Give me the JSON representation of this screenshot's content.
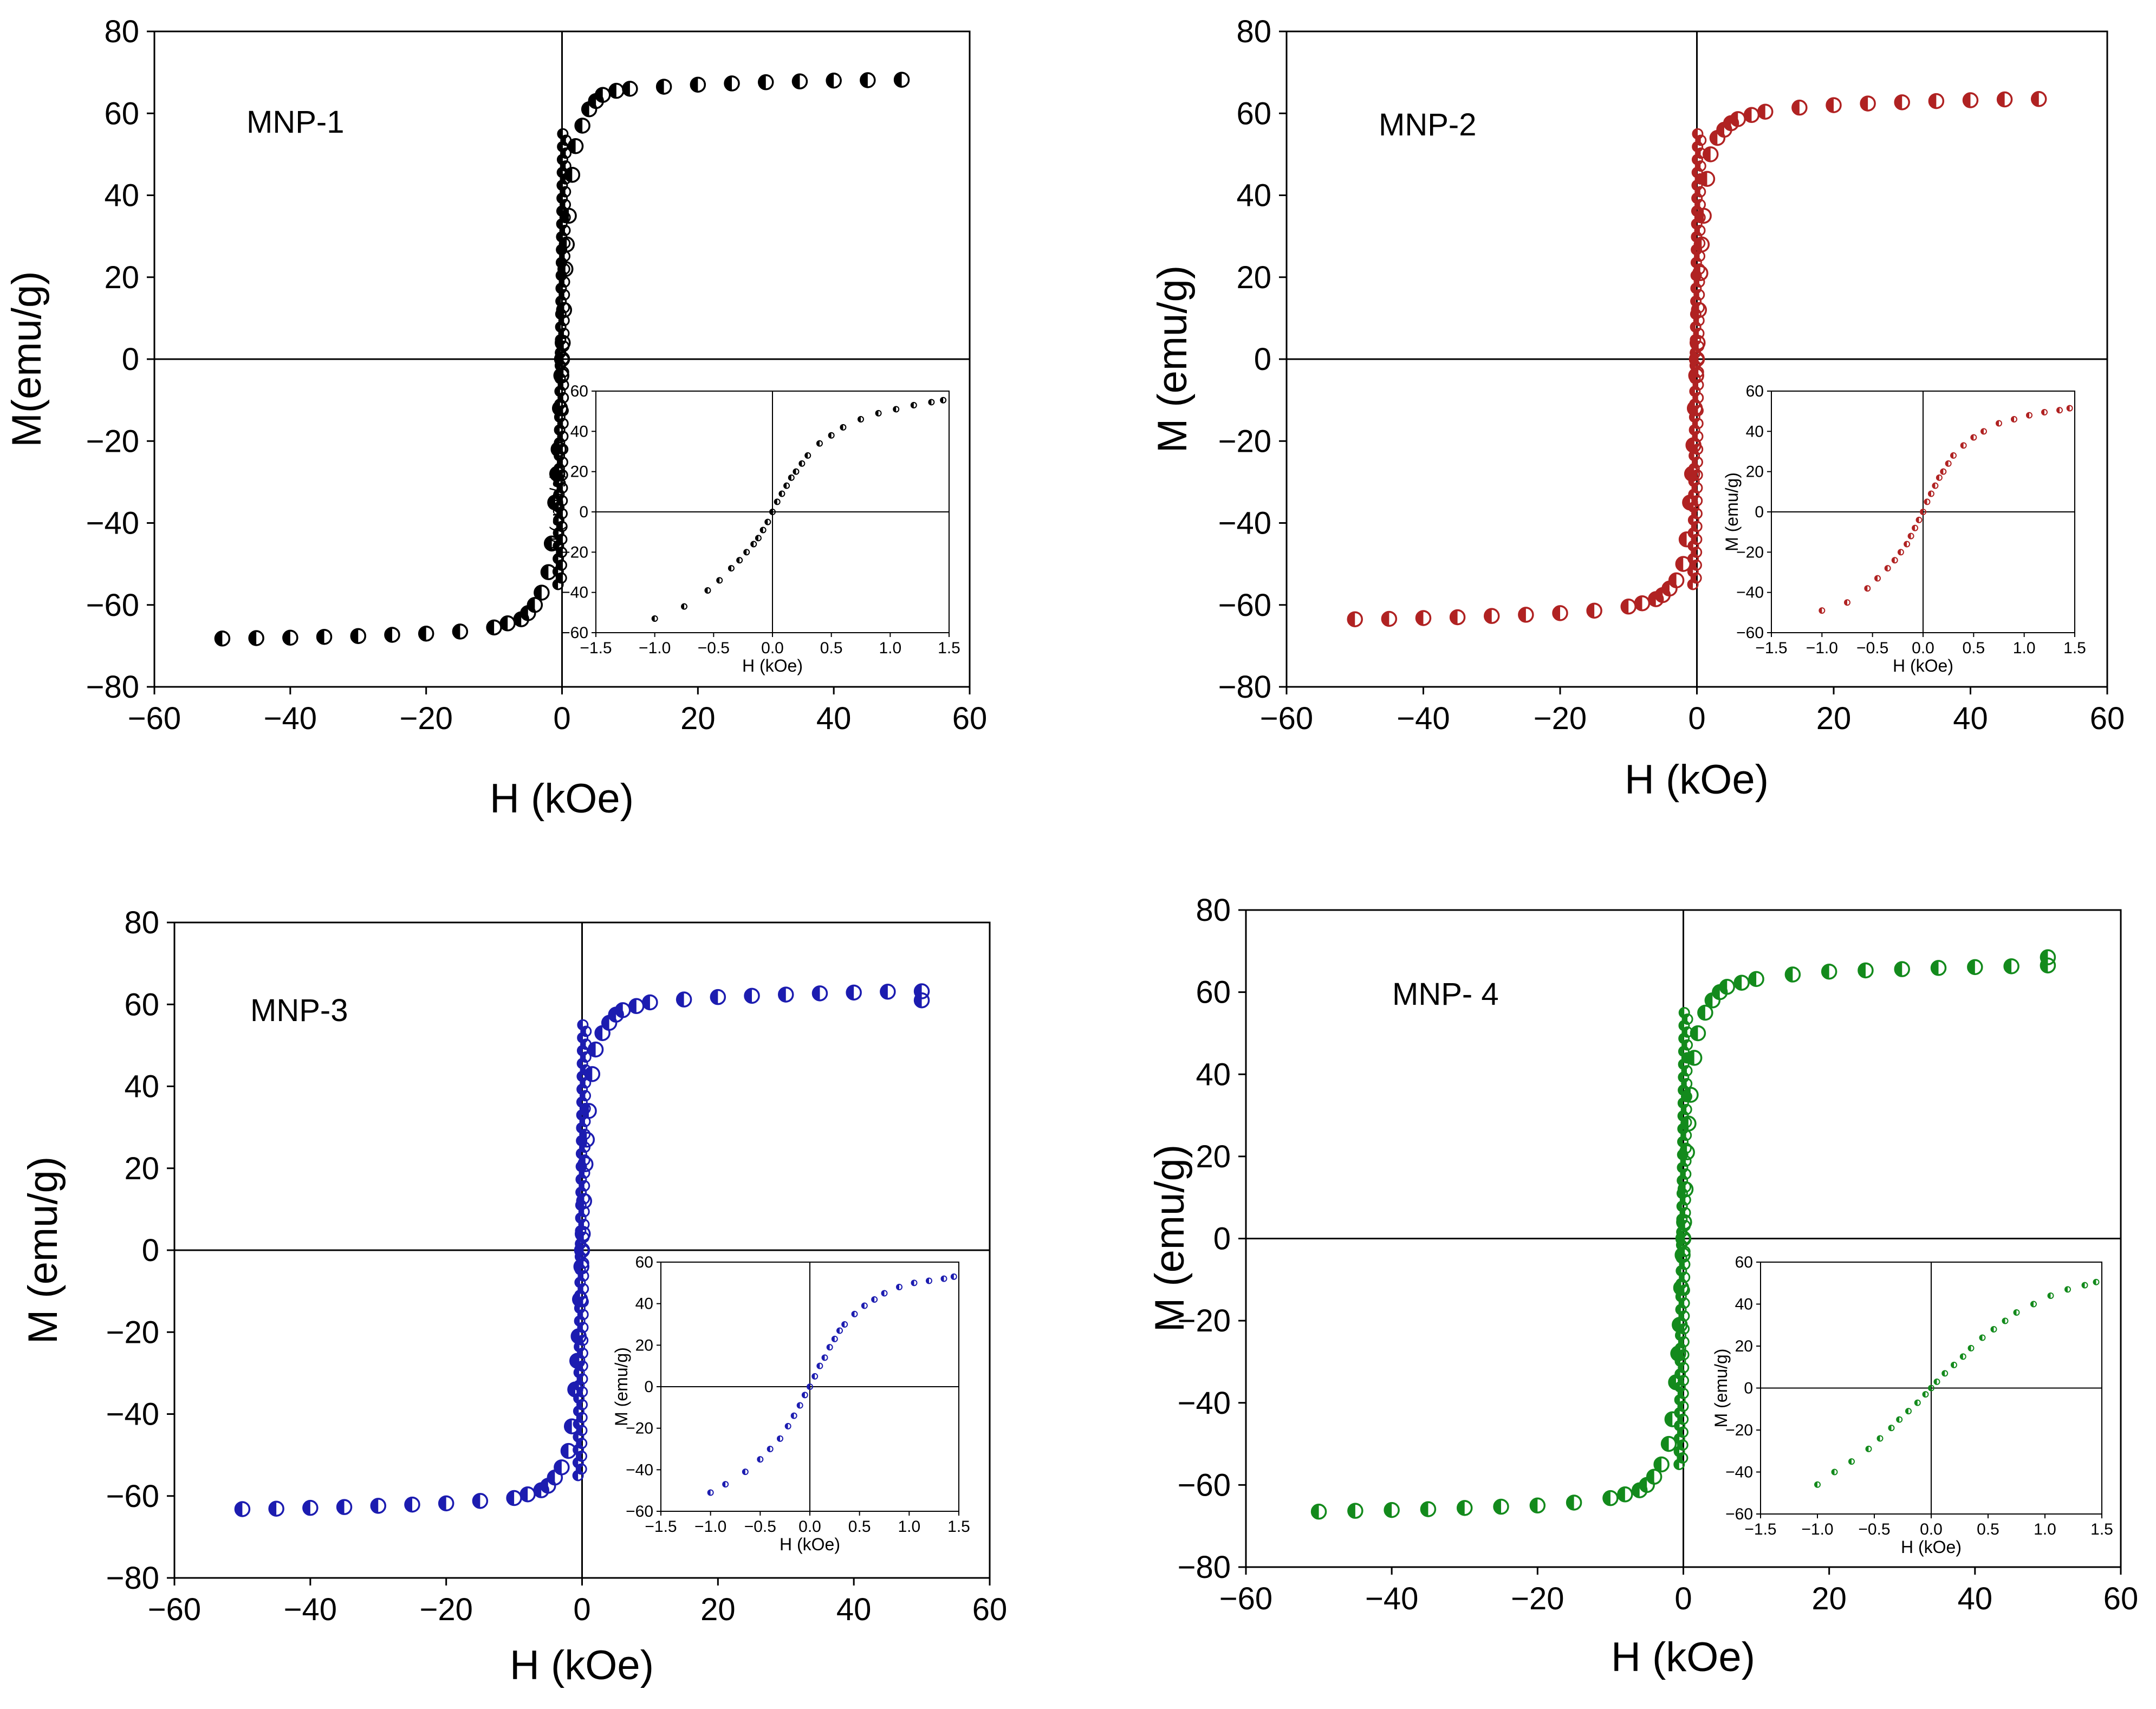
{
  "chart_data": [
    {
      "type": "scatter",
      "panel_label": "MNP-1",
      "color": "#000000",
      "xlabel": "H (kOe)",
      "ylabel": "M(emu/g)",
      "xlim": [
        -60,
        60
      ],
      "ylim": [
        -80,
        80
      ],
      "xticks": [
        -60,
        -40,
        -20,
        0,
        20,
        40,
        60
      ],
      "yticks": [
        -80,
        -60,
        -40,
        -20,
        0,
        20,
        40,
        60,
        80
      ],
      "Ms": 68,
      "a": 1.5,
      "x": [
        -50,
        -45,
        -40,
        -35,
        -30,
        -25,
        -20,
        -15,
        -10,
        -8,
        -6,
        -5,
        -4,
        -3,
        -2,
        -1.5,
        -1,
        -0.7,
        -0.5,
        -0.3,
        -0.1,
        0,
        0.1,
        0.3,
        0.5,
        0.7,
        1,
        1.5,
        2,
        3,
        4,
        5,
        6,
        8,
        10,
        15,
        20,
        25,
        30,
        35,
        40,
        45,
        50
      ],
      "y": [
        -68.2,
        -68.1,
        -68,
        -67.8,
        -67.6,
        -67.3,
        -67,
        -66.5,
        -65.5,
        -64.5,
        -63.5,
        -62,
        -60,
        -57,
        -52,
        -45,
        -35,
        -28,
        -22,
        -12,
        -4,
        0,
        4,
        12,
        22,
        28,
        35,
        45,
        52,
        57,
        61,
        63,
        64.5,
        65.5,
        66,
        66.5,
        67,
        67.3,
        67.6,
        67.8,
        68,
        68.1,
        68.2
      ],
      "inset": {
        "xlabel": "H (kOe)",
        "ylabel": "M (emu/g)",
        "xlim": [
          -1.5,
          1.5
        ],
        "ylim": [
          -60,
          60
        ],
        "xticks": [
          -1.5,
          -1.0,
          -0.5,
          0.0,
          0.5,
          1.0,
          1.5
        ],
        "xtick_labels": [
          "-1.5",
          "-1.0",
          "-0.5",
          "0.0",
          "0.5",
          "1.0",
          "1.5"
        ],
        "yticks": [
          -60,
          -40,
          -20,
          0,
          20,
          40,
          60
        ],
        "x": [
          -1.0,
          -0.75,
          -0.55,
          -0.45,
          -0.35,
          -0.28,
          -0.22,
          -0.16,
          -0.12,
          -0.08,
          -0.04,
          0,
          0.04,
          0.08,
          0.12,
          0.16,
          0.2,
          0.25,
          0.3,
          0.4,
          0.5,
          0.6,
          0.75,
          0.9,
          1.05,
          1.2,
          1.35,
          1.45
        ],
        "y": [
          -53,
          -47,
          -39,
          -34,
          -28,
          -24,
          -20,
          -16,
          -13,
          -9,
          -5,
          0,
          5,
          9,
          13,
          17,
          20,
          24,
          28,
          34,
          38,
          42,
          46,
          49,
          51,
          53,
          54.5,
          55.5
        ]
      }
    },
    {
      "type": "scatter",
      "panel_label": "MNP-2",
      "color": "#b02222",
      "xlabel": "H (kOe)",
      "ylabel": "M (emu/g)",
      "xlim": [
        -60,
        60
      ],
      "ylim": [
        -80,
        80
      ],
      "xticks": [
        -60,
        -40,
        -20,
        0,
        20,
        40,
        60
      ],
      "yticks": [
        -80,
        -60,
        -40,
        -20,
        0,
        20,
        40,
        60,
        80
      ],
      "x": [
        -50,
        -45,
        -40,
        -35,
        -30,
        -25,
        -20,
        -15,
        -10,
        -8,
        -6,
        -5,
        -4,
        -3,
        -2,
        -1.5,
        -1,
        -0.7,
        -0.5,
        -0.3,
        -0.1,
        0,
        0.1,
        0.3,
        0.5,
        0.7,
        1,
        1.5,
        2,
        3,
        4,
        5,
        6,
        8,
        10,
        15,
        20,
        25,
        30,
        35,
        40,
        45,
        50
      ],
      "y": [
        -63.5,
        -63.4,
        -63.2,
        -63,
        -62.7,
        -62.4,
        -62,
        -61.4,
        -60.4,
        -59.6,
        -58.6,
        -57.6,
        -56,
        -54,
        -50,
        -44,
        -35,
        -28,
        -21,
        -12,
        -4,
        0,
        4,
        12,
        21,
        28,
        35,
        44,
        50,
        54,
        56,
        57.6,
        58.6,
        59.6,
        60.4,
        61.4,
        62,
        62.4,
        62.7,
        63,
        63.2,
        63.4,
        63.5
      ],
      "inset": {
        "xlabel": "H (kOe)",
        "ylabel": "M (emu/g)",
        "xlim": [
          -1.5,
          1.5
        ],
        "ylim": [
          -60,
          60
        ],
        "xticks": [
          -1.5,
          -1.0,
          -0.5,
          0.0,
          0.5,
          1.0,
          1.5
        ],
        "xtick_labels": [
          "-1.5",
          "-1.0",
          "-0.5",
          "0.0",
          "0.5",
          "1.0",
          "1.5"
        ],
        "yticks": [
          -60,
          -40,
          -20,
          0,
          20,
          40,
          60
        ],
        "x": [
          -1.0,
          -0.75,
          -0.55,
          -0.45,
          -0.35,
          -0.28,
          -0.22,
          -0.16,
          -0.12,
          -0.08,
          -0.04,
          0,
          0.04,
          0.08,
          0.12,
          0.16,
          0.2,
          0.25,
          0.3,
          0.4,
          0.5,
          0.6,
          0.75,
          0.9,
          1.05,
          1.2,
          1.35,
          1.45
        ],
        "y": [
          -49,
          -45,
          -38,
          -33,
          -28,
          -24,
          -20,
          -16,
          -12,
          -8,
          -4,
          0,
          5,
          9,
          13,
          17,
          20,
          24,
          28,
          33,
          37,
          40,
          44,
          46,
          48,
          49.5,
          50.5,
          51.5
        ]
      }
    },
    {
      "type": "scatter",
      "panel_label": "MNP-3",
      "color": "#1c1cb0",
      "xlabel": "H (kOe)",
      "ylabel": "M (emu/g)",
      "xlim": [
        -60,
        60
      ],
      "ylim": [
        -80,
        80
      ],
      "xticks": [
        -60,
        -40,
        -20,
        0,
        20,
        40,
        60
      ],
      "yticks": [
        -80,
        -60,
        -40,
        -20,
        0,
        20,
        40,
        60,
        80
      ],
      "x": [
        -50,
        -45,
        -40,
        -35,
        -30,
        -25,
        -20,
        -15,
        -10,
        -8,
        -6,
        -5,
        -4,
        -3,
        -2,
        -1.5,
        -1,
        -0.7,
        -0.5,
        -0.3,
        -0.1,
        0,
        0.1,
        0.3,
        0.5,
        0.7,
        1,
        1.5,
        2,
        3,
        4,
        5,
        6,
        8,
        10,
        15,
        20,
        25,
        30,
        35,
        40,
        45,
        50,
        50
      ],
      "y": [
        -63.2,
        -63.1,
        -62.9,
        -62.7,
        -62.4,
        -62.1,
        -61.8,
        -61.2,
        -60.5,
        -59.6,
        -58.6,
        -57.5,
        -55.5,
        -53,
        -49,
        -43,
        -34,
        -27,
        -21,
        -12,
        -4,
        0,
        4,
        12,
        21,
        27,
        34,
        43,
        49,
        53,
        55.5,
        57.5,
        58.6,
        59.6,
        60.5,
        61.2,
        61.8,
        62.1,
        62.4,
        62.7,
        62.9,
        63.1,
        63.2,
        61
      ],
      "inset": {
        "xlabel": "H (kOe)",
        "ylabel": "M (emu/g)",
        "xlim": [
          -1.5,
          1.5
        ],
        "ylim": [
          -60,
          60
        ],
        "xticks": [
          -1.5,
          -1.0,
          -0.5,
          0.0,
          0.5,
          1.0,
          1.5
        ],
        "xtick_labels": [
          "-1.5",
          "-1.0",
          "-0.5",
          "0.0",
          "0.5",
          "1.0",
          "1.5"
        ],
        "yticks": [
          -60,
          -40,
          -20,
          0,
          20,
          40,
          60
        ],
        "x": [
          -1.0,
          -0.85,
          -0.65,
          -0.5,
          -0.4,
          -0.3,
          -0.22,
          -0.16,
          -0.1,
          -0.05,
          0,
          0.05,
          0.1,
          0.15,
          0.2,
          0.25,
          0.3,
          0.35,
          0.45,
          0.55,
          0.65,
          0.75,
          0.9,
          1.05,
          1.2,
          1.35,
          1.45
        ],
        "y": [
          -51,
          -47,
          -41,
          -35,
          -30,
          -25,
          -19,
          -14,
          -9,
          -4,
          0,
          5,
          10,
          14,
          19,
          23,
          27,
          30,
          35,
          39,
          42,
          45,
          48,
          50,
          51,
          52,
          53
        ]
      }
    },
    {
      "type": "scatter",
      "panel_label": "MNP- 4",
      "color": "#138a1c",
      "xlabel": "H (kOe)",
      "ylabel": "M (emu/g)",
      "xlim": [
        -60,
        60
      ],
      "ylim": [
        -80,
        80
      ],
      "xticks": [
        -60,
        -40,
        -20,
        0,
        20,
        40,
        60
      ],
      "yticks": [
        -80,
        -60,
        -40,
        -20,
        0,
        20,
        40,
        60,
        80
      ],
      "x": [
        -50,
        -45,
        -40,
        -35,
        -30,
        -25,
        -20,
        -15,
        -10,
        -8,
        -6,
        -5,
        -4,
        -3,
        -2,
        -1.5,
        -1,
        -0.7,
        -0.5,
        -0.3,
        -0.1,
        0,
        0.1,
        0.3,
        0.5,
        0.7,
        1,
        1.5,
        2,
        3,
        4,
        5,
        6,
        8,
        10,
        15,
        20,
        25,
        30,
        35,
        40,
        45,
        50,
        50
      ],
      "y": [
        -66.5,
        -66.3,
        -66.1,
        -65.9,
        -65.6,
        -65.3,
        -65,
        -64.3,
        -63.2,
        -62.3,
        -61.3,
        -60,
        -58,
        -55,
        -50,
        -44,
        -35,
        -28,
        -21,
        -12,
        -4,
        0,
        4,
        12,
        21,
        28,
        35,
        44,
        50,
        55,
        58,
        60,
        61.3,
        62.3,
        63.2,
        64.3,
        65,
        65.3,
        65.6,
        65.9,
        66.1,
        66.3,
        66.5,
        68.5
      ],
      "inset": {
        "xlabel": "H (kOe)",
        "ylabel": "M (emu/g)",
        "xlim": [
          -1.5,
          1.5
        ],
        "ylim": [
          -60,
          60
        ],
        "xticks": [
          -1.5,
          -1.0,
          -0.5,
          0.0,
          0.5,
          1.0,
          1.5
        ],
        "xtick_labels": [
          "-1.5",
          "-1.0",
          "-0.5",
          "0.0",
          "0.5",
          "1.0",
          "1.5"
        ],
        "yticks": [
          -60,
          -40,
          -20,
          0,
          20,
          40,
          60
        ],
        "x": [
          -1.0,
          -0.85,
          -0.7,
          -0.55,
          -0.45,
          -0.35,
          -0.28,
          -0.2,
          -0.12,
          -0.05,
          0,
          0.05,
          0.12,
          0.2,
          0.28,
          0.35,
          0.45,
          0.55,
          0.65,
          0.75,
          0.9,
          1.05,
          1.2,
          1.35,
          1.45
        ],
        "y": [
          -46,
          -40,
          -35,
          -29,
          -24,
          -19,
          -15,
          -11,
          -7,
          -3,
          0,
          3,
          7,
          11,
          15,
          19,
          24,
          28,
          32,
          36,
          40,
          44,
          47,
          49,
          50.5
        ]
      }
    }
  ]
}
